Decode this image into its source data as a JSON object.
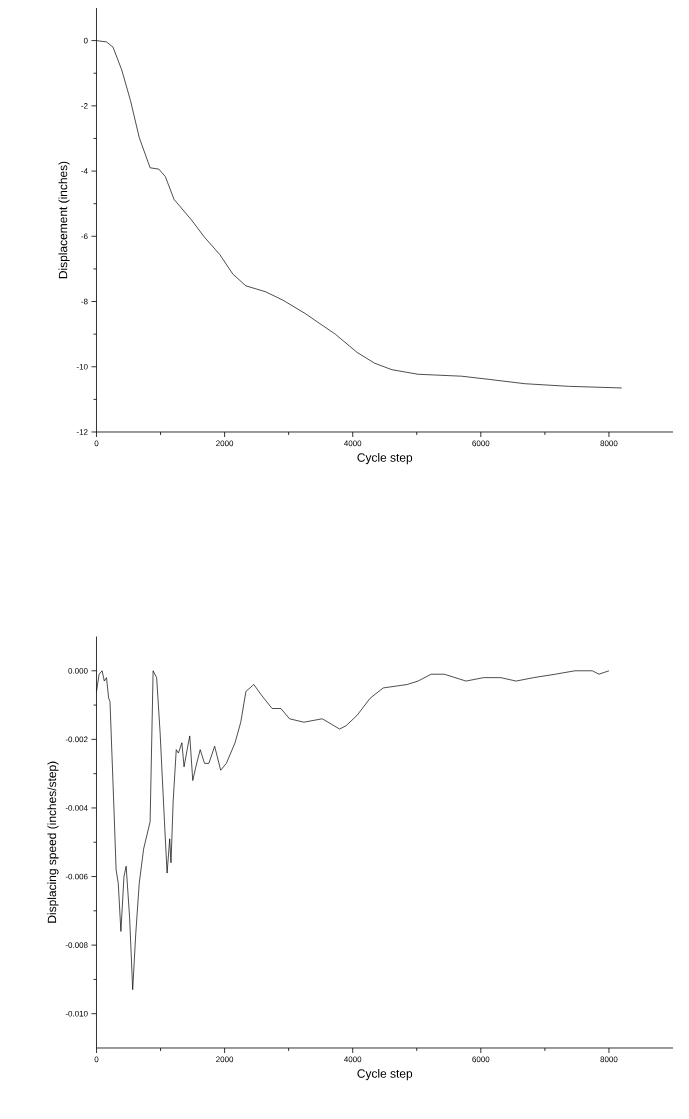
{
  "chart_data": [
    {
      "type": "line",
      "xlabel": "Cycle step",
      "ylabel": "Displacement (inches)",
      "xlim": [
        0,
        9000
      ],
      "ylim": [
        -12,
        1
      ],
      "xticks": [
        0,
        2000,
        4000,
        6000,
        8000
      ],
      "yticks": [
        -12,
        -10,
        -8,
        -6,
        -4,
        -2,
        0
      ],
      "series": [
        {
          "color": "#000000",
          "x": [
            0,
            156,
            258,
            394,
            531,
            667,
            837,
            973,
            1075,
            1211,
            1483,
            1687,
            1925,
            2129,
            2333,
            2639,
            2912,
            3252,
            3728,
            4068,
            4340,
            4612,
            5020,
            5701,
            6143,
            6687,
            7367,
            8200
          ],
          "values": [
            0,
            -0.04,
            -0.2,
            -0.9,
            -1.84,
            -2.97,
            -3.9,
            -3.94,
            -4.17,
            -4.87,
            -5.5,
            -6.03,
            -6.56,
            -7.16,
            -7.52,
            -7.7,
            -7.96,
            -8.36,
            -9.0,
            -9.56,
            -9.89,
            -10.09,
            -10.23,
            -10.29,
            -10.39,
            -10.52,
            -10.6,
            -10.65
          ]
        }
      ]
    },
    {
      "type": "line",
      "xlabel": "Cycle step",
      "ylabel": "Displacing speed (inches/step)",
      "xlim": [
        0,
        9000
      ],
      "ylim": [
        -0.011,
        0.001
      ],
      "xticks": [
        0,
        2000,
        4000,
        6000,
        8000
      ],
      "yticks": [
        {
          "value": -0.01,
          "label": "-0.010"
        },
        {
          "value": -0.008,
          "label": "-0.008"
        },
        {
          "value": -0.006,
          "label": "-0.006"
        },
        {
          "value": -0.004,
          "label": "-0.004"
        },
        {
          "value": -0.002,
          "label": "-0.002"
        },
        {
          "value": 0,
          "label": "0.000"
        }
      ],
      "series": [
        {
          "color": "#000000",
          "x": [
            0,
            41,
            88,
            122,
            156,
            190,
            211,
            272,
            306,
            340,
            381,
            429,
            463,
            517,
            565,
            612,
            667,
            735,
            837,
            884,
            939,
            993,
            1061,
            1102,
            1143,
            1163,
            1197,
            1245,
            1279,
            1333,
            1367,
            1415,
            1456,
            1503,
            1551,
            1619,
            1687,
            1755,
            1844,
            1939,
            2027,
            2163,
            2252,
            2333,
            2456,
            2571,
            2741,
            2878,
            3014,
            3238,
            3524,
            3796,
            3898,
            4068,
            4272,
            4476,
            4850,
            5020,
            5224,
            5429,
            5769,
            6041,
            6313,
            6551,
            6823,
            7163,
            7469,
            7741,
            7844,
            8000
          ],
          "values": [
            -0.0006,
            -0.0001,
            0,
            -0.0003,
            -0.0002,
            -0.0008,
            -0.0009,
            -0.004,
            -0.0058,
            -0.0062,
            -0.0076,
            -0.006,
            -0.0057,
            -0.0072,
            -0.0093,
            -0.0077,
            -0.0062,
            -0.0052,
            -0.0044,
            0,
            -0.0002,
            -0.0018,
            -0.0044,
            -0.0059,
            -0.0049,
            -0.0056,
            -0.0038,
            -0.0023,
            -0.0024,
            -0.0021,
            -0.0028,
            -0.0023,
            -0.0019,
            -0.0032,
            -0.0028,
            -0.0023,
            -0.0027,
            -0.0027,
            -0.0022,
            -0.0029,
            -0.0027,
            -0.0021,
            -0.0015,
            -0.0006,
            -0.0004,
            -0.0007,
            -0.0011,
            -0.0011,
            -0.0014,
            -0.0015,
            -0.0014,
            -0.0017,
            -0.0016,
            -0.0013,
            -0.0008,
            -0.0005,
            -0.0004,
            -0.0003,
            -0.0001,
            -0.0001,
            -0.0003,
            -0.0002,
            -0.0002,
            -0.0003,
            -0.0002,
            -0.0001,
            0,
            0,
            -0.0001,
            0
          ]
        }
      ]
    }
  ]
}
